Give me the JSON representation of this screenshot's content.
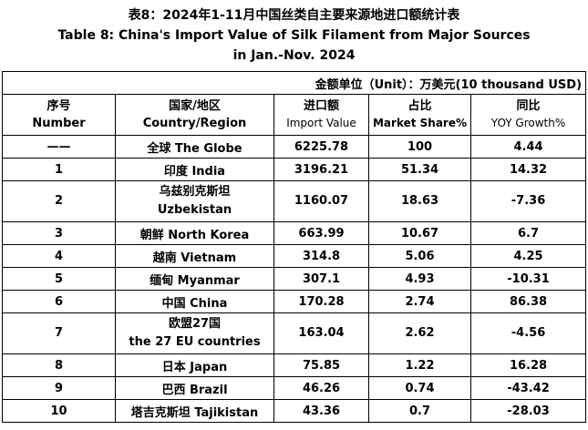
{
  "title": {
    "zh": "表8：2024年1-11月中国丝类自主要来源地进口额统计表",
    "en_line1": "Table 8: China's Import Value of Silk Filament from Major Sources",
    "en_line2": "in Jan.-Nov. 2024"
  },
  "unit": "金额单位（Unit）：万美元(10 thousand USD)",
  "headers": {
    "no_zh": "序号",
    "no_en": "Number",
    "country_zh": "国家/地区",
    "country_en": "Country/Region",
    "value_zh": "进口额",
    "value_en": "Import Value",
    "share_zh": "占比",
    "share_en": "Market Share%",
    "yoy_zh": "同比",
    "yoy_en": "YOY Growth%"
  },
  "rows": [
    {
      "no": "——",
      "country": "全球  The Globe",
      "value": "6225.78",
      "share": "100",
      "yoy": "4.44"
    },
    {
      "no": "1",
      "country": "印度 India",
      "value": "3196.21",
      "share": "51.34",
      "yoy": "14.32"
    },
    {
      "no": "2",
      "country": "乌兹别克斯坦",
      "country2": "Uzbekistan",
      "value": "1160.07",
      "share": "18.63",
      "yoy": "-7.36"
    },
    {
      "no": "3",
      "country": "朝鲜  North Korea",
      "value": "663.99",
      "share": "10.67",
      "yoy": "6.7"
    },
    {
      "no": "4",
      "country": "越南 Vietnam",
      "value": "314.8",
      "share": "5.06",
      "yoy": "4.25"
    },
    {
      "no": "5",
      "country": "缅甸 Myanmar",
      "value": "307.1",
      "share": "4.93",
      "yoy": "-10.31"
    },
    {
      "no": "6",
      "country": "中国 China",
      "value": "170.28",
      "share": "2.74",
      "yoy": "86.38"
    },
    {
      "no": "7",
      "country": "欧盟27国",
      "country2": "the 27 EU countries",
      "value": "163.04",
      "share": "2.62",
      "yoy": "-4.56"
    },
    {
      "no": "8",
      "country": "日本 Japan",
      "value": "75.85",
      "share": "1.22",
      "yoy": "16.28"
    },
    {
      "no": "9",
      "country": "巴西 Brazil",
      "value": "46.26",
      "share": "0.74",
      "yoy": "-43.42"
    },
    {
      "no": "10",
      "country": "塔吉克斯坦 Tajikistan",
      "value": "43.36",
      "share": "0.7",
      "yoy": "-28.03"
    }
  ]
}
